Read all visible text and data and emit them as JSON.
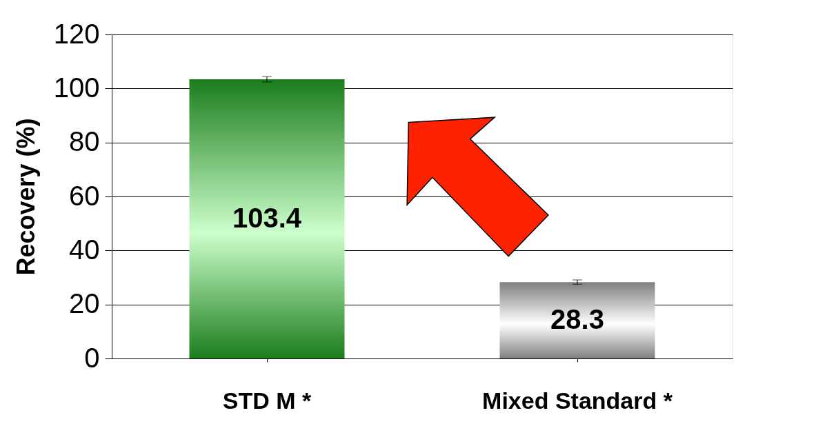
{
  "chart_data": {
    "type": "bar",
    "ylabel": "Recovery (%)",
    "categories": [
      "STD M *",
      "Mixed Standard *"
    ],
    "values": [
      103.4,
      28.3
    ],
    "colors": [
      "#1b7d1b",
      "#7f7f7f"
    ],
    "errors": [
      1.0,
      0.8
    ],
    "data_labels": true,
    "ylim": [
      0,
      120
    ],
    "yticks": [
      0,
      20,
      40,
      60,
      80,
      100,
      120
    ],
    "grid": "y"
  }
}
